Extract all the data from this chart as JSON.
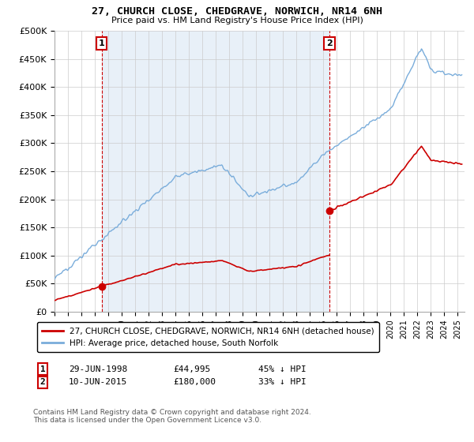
{
  "title_line1": "27, CHURCH CLOSE, CHEDGRAVE, NORWICH, NR14 6NH",
  "title_line2": "Price paid vs. HM Land Registry's House Price Index (HPI)",
  "ylim": [
    0,
    500000
  ],
  "yticks": [
    0,
    50000,
    100000,
    150000,
    200000,
    250000,
    300000,
    350000,
    400000,
    450000,
    500000
  ],
  "ytick_labels": [
    "£0",
    "£50K",
    "£100K",
    "£150K",
    "£200K",
    "£250K",
    "£300K",
    "£350K",
    "£400K",
    "£450K",
    "£500K"
  ],
  "hpi_color": "#7aaddb",
  "price_color": "#cc0000",
  "annotation_box_color": "#cc0000",
  "background_color": "#ffffff",
  "grid_color": "#cccccc",
  "band_color": "#e8f0f8",
  "legend_label_price": "27, CHURCH CLOSE, CHEDGRAVE, NORWICH, NR14 6NH (detached house)",
  "legend_label_hpi": "HPI: Average price, detached house, South Norfolk",
  "sale1_date": "29-JUN-1998",
  "sale1_price": "£44,995",
  "sale1_hpi": "45% ↓ HPI",
  "sale1_year": 1998.5,
  "sale1_value": 44995,
  "sale2_date": "10-JUN-2015",
  "sale2_price": "£180,000",
  "sale2_hpi": "33% ↓ HPI",
  "sale2_year": 2015.45,
  "sale2_value": 180000,
  "footer": "Contains HM Land Registry data © Crown copyright and database right 2024.\nThis data is licensed under the Open Government Licence v3.0.",
  "xmin": 1995,
  "xmax": 2025.5
}
